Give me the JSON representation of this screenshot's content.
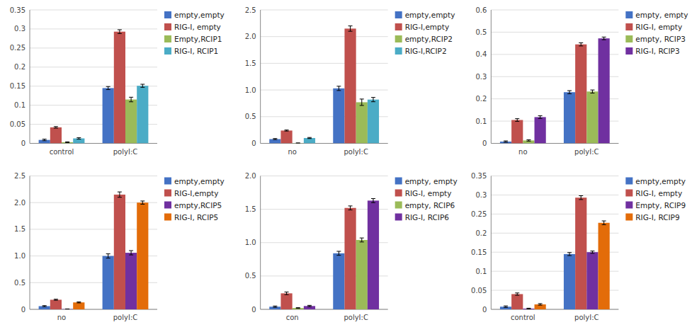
{
  "chart_data": [
    {
      "type": "bar",
      "categories": [
        "control",
        "polyI:C"
      ],
      "series": [
        {
          "name": "empty,empty",
          "color": "#4472C4",
          "values": [
            0.009,
            0.145
          ],
          "errors": [
            0.002,
            0.004
          ]
        },
        {
          "name": "RIG-I, empty",
          "color": "#C0504D",
          "values": [
            0.042,
            0.293
          ],
          "errors": [
            0.002,
            0.005
          ]
        },
        {
          "name": "Empty,RCIP1",
          "color": "#9BBB59",
          "values": [
            0.003,
            0.115
          ],
          "errors": [
            0.001,
            0.006
          ]
        },
        {
          "name": "RIG-I, RCIP1",
          "color": "#4BACC6",
          "values": [
            0.013,
            0.151
          ],
          "errors": [
            0.002,
            0.004
          ]
        }
      ],
      "ylim": [
        0,
        0.35
      ],
      "yticks": [
        0,
        0.05,
        0.1,
        0.15,
        0.2,
        0.25,
        0.3,
        0.35
      ],
      "grid": true,
      "legend": "right"
    },
    {
      "type": "bar",
      "categories": [
        "no",
        "polyI:C"
      ],
      "series": [
        {
          "name": "empty,empty",
          "color": "#4472C4",
          "values": [
            0.08,
            1.03
          ],
          "errors": [
            0.01,
            0.04
          ]
        },
        {
          "name": "RIG-I,empty",
          "color": "#C0504D",
          "values": [
            0.24,
            2.15
          ],
          "errors": [
            0.01,
            0.05
          ]
        },
        {
          "name": "empty,RCIP2",
          "color": "#9BBB59",
          "values": [
            0.005,
            0.77
          ],
          "errors": [
            0.003,
            0.06
          ]
        },
        {
          "name": "RIG-I,RCIP2",
          "color": "#4BACC6",
          "values": [
            0.1,
            0.82
          ],
          "errors": [
            0.01,
            0.04
          ]
        }
      ],
      "ylim": [
        0,
        2.5
      ],
      "yticks": [
        0,
        0.5,
        {
          "value": 1,
          "label": "1.0"
        },
        1.5,
        {
          "value": 2,
          "label": "2.0"
        },
        2.5
      ],
      "grid": true,
      "legend": "right"
    },
    {
      "type": "bar",
      "categories": [
        "no",
        "polyI:C"
      ],
      "series": [
        {
          "name": "empty, empty",
          "color": "#4472C4",
          "values": [
            0.008,
            0.23
          ],
          "errors": [
            0.003,
            0.007
          ]
        },
        {
          "name": "RIG-I, empty",
          "color": "#C0504D",
          "values": [
            0.105,
            0.445
          ],
          "errors": [
            0.006,
            0.007
          ]
        },
        {
          "name": "empty, RCIP3",
          "color": "#9BBB59",
          "values": [
            0.013,
            0.233
          ],
          "errors": [
            0.003,
            0.007
          ]
        },
        {
          "name": "RIG-I, RCIP3",
          "color": "#7030A0",
          "values": [
            0.118,
            0.472
          ],
          "errors": [
            0.006,
            0.006
          ]
        }
      ],
      "ylim": [
        0,
        0.6
      ],
      "yticks": [
        0,
        0.1,
        0.2,
        0.3,
        0.4,
        0.5,
        0.6
      ],
      "grid": true,
      "legend": "right"
    },
    {
      "type": "bar",
      "categories": [
        "no",
        "polyI:C"
      ],
      "series": [
        {
          "name": "empty,empty",
          "color": "#4472C4",
          "values": [
            0.06,
            1.0
          ],
          "errors": [
            0.01,
            0.04
          ]
        },
        {
          "name": "RIG-I,empty",
          "color": "#C0504D",
          "values": [
            0.18,
            2.15
          ],
          "errors": [
            0.01,
            0.05
          ]
        },
        {
          "name": "empty,RCIP5",
          "color": "#7030A0",
          "values": [
            0.005,
            1.06
          ],
          "errors": [
            0.003,
            0.04
          ]
        },
        {
          "name": "RIG-I, RCIP5",
          "color": "#E36C09",
          "values": [
            0.13,
            2.0
          ],
          "errors": [
            0.01,
            0.03
          ]
        }
      ],
      "ylim": [
        0,
        2.5
      ],
      "yticks": [
        0,
        0.5,
        {
          "value": 1,
          "label": "1.0"
        },
        1.5,
        {
          "value": 2,
          "label": "2.0"
        },
        2.5
      ],
      "grid": true,
      "legend": "right"
    },
    {
      "type": "bar",
      "categories": [
        "con",
        "polyI:C"
      ],
      "series": [
        {
          "name": "empty, empty",
          "color": "#4472C4",
          "values": [
            0.04,
            0.84
          ],
          "errors": [
            0.01,
            0.03
          ]
        },
        {
          "name": "RIG-I, empty",
          "color": "#C0504D",
          "values": [
            0.24,
            1.52
          ],
          "errors": [
            0.02,
            0.03
          ]
        },
        {
          "name": "empty, RCIP6",
          "color": "#9BBB59",
          "values": [
            0.02,
            1.04
          ],
          "errors": [
            0.005,
            0.03
          ]
        },
        {
          "name": "RIG-I, RCIP6",
          "color": "#7030A0",
          "values": [
            0.05,
            1.63
          ],
          "errors": [
            0.01,
            0.03
          ]
        }
      ],
      "ylim": [
        0,
        2.0
      ],
      "yticks": [
        0,
        0.5,
        {
          "value": 1,
          "label": "1.0"
        },
        1.5,
        {
          "value": 2,
          "label": "2.0"
        }
      ],
      "grid": true,
      "legend": "right"
    },
    {
      "type": "bar",
      "categories": [
        "control",
        "polyI:C"
      ],
      "series": [
        {
          "name": "empty,empty",
          "color": "#4472C4",
          "values": [
            0.007,
            0.145
          ],
          "errors": [
            0.002,
            0.004
          ]
        },
        {
          "name": "RIG-I, empty",
          "color": "#C0504D",
          "values": [
            0.04,
            0.293
          ],
          "errors": [
            0.003,
            0.005
          ]
        },
        {
          "name": "Empty, RCIP9",
          "color": "#7030A0",
          "values": [
            0.002,
            0.15
          ],
          "errors": [
            0.001,
            0.003
          ]
        },
        {
          "name": "RIG-I, RCIP9",
          "color": "#E36C09",
          "values": [
            0.013,
            0.227
          ],
          "errors": [
            0.002,
            0.005
          ]
        }
      ],
      "ylim": [
        0,
        0.35
      ],
      "yticks": [
        0,
        0.05,
        0.1,
        0.15,
        0.2,
        0.25,
        0.3,
        0.35
      ],
      "grid": true,
      "legend": "right"
    }
  ]
}
